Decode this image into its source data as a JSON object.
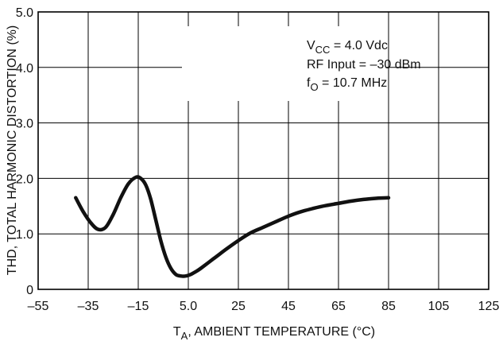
{
  "chart_data": {
    "type": "line",
    "xlabel": "T",
    "xlabel_sub": "A",
    "xlabel_rest": ", AMBIENT TEMPERATURE (°C)",
    "ylabel": "THD, TOTAL HARMONIC DISTORTION (%)",
    "xlim": [
      -55,
      125
    ],
    "ylim": [
      0,
      5.0
    ],
    "x_ticks": [
      -55,
      -35,
      -15,
      5.0,
      25,
      45,
      65,
      85,
      105,
      125
    ],
    "x_tick_labels": [
      "–55",
      "–35",
      "–15",
      "5.0",
      "25",
      "45",
      "65",
      "85",
      "105",
      "125"
    ],
    "y_ticks": [
      0,
      1.0,
      2.0,
      3.0,
      4.0,
      5.0
    ],
    "y_tick_labels": [
      "0",
      "1.0",
      "2.0",
      "3.0",
      "4.0",
      "5.0"
    ],
    "grid": true,
    "annotations": [
      {
        "main": "V",
        "sub": "CC",
        "rest": " = 4.0 Vdc"
      },
      {
        "main": "RF Input = –30 dBm",
        "sub": "",
        "rest": ""
      },
      {
        "main": "f",
        "sub": "O",
        "rest": " = 10.7 MHz"
      }
    ],
    "series": [
      {
        "x": [
          -40,
          -37,
          -34,
          -31,
          -28,
          -25,
          -22,
          -19,
          -16,
          -14,
          -12,
          -10,
          -8,
          -6,
          -4,
          -2,
          0,
          2,
          4,
          6,
          8,
          10,
          15,
          20,
          25,
          30,
          35,
          40,
          45,
          50,
          55,
          60,
          65,
          70,
          75,
          80,
          85
        ],
        "y": [
          1.65,
          1.4,
          1.2,
          1.08,
          1.12,
          1.35,
          1.65,
          1.9,
          2.02,
          2.0,
          1.88,
          1.62,
          1.25,
          0.88,
          0.58,
          0.38,
          0.27,
          0.24,
          0.24,
          0.27,
          0.32,
          0.38,
          0.55,
          0.72,
          0.88,
          1.02,
          1.12,
          1.22,
          1.32,
          1.4,
          1.46,
          1.51,
          1.55,
          1.59,
          1.62,
          1.64,
          1.65
        ]
      }
    ]
  }
}
